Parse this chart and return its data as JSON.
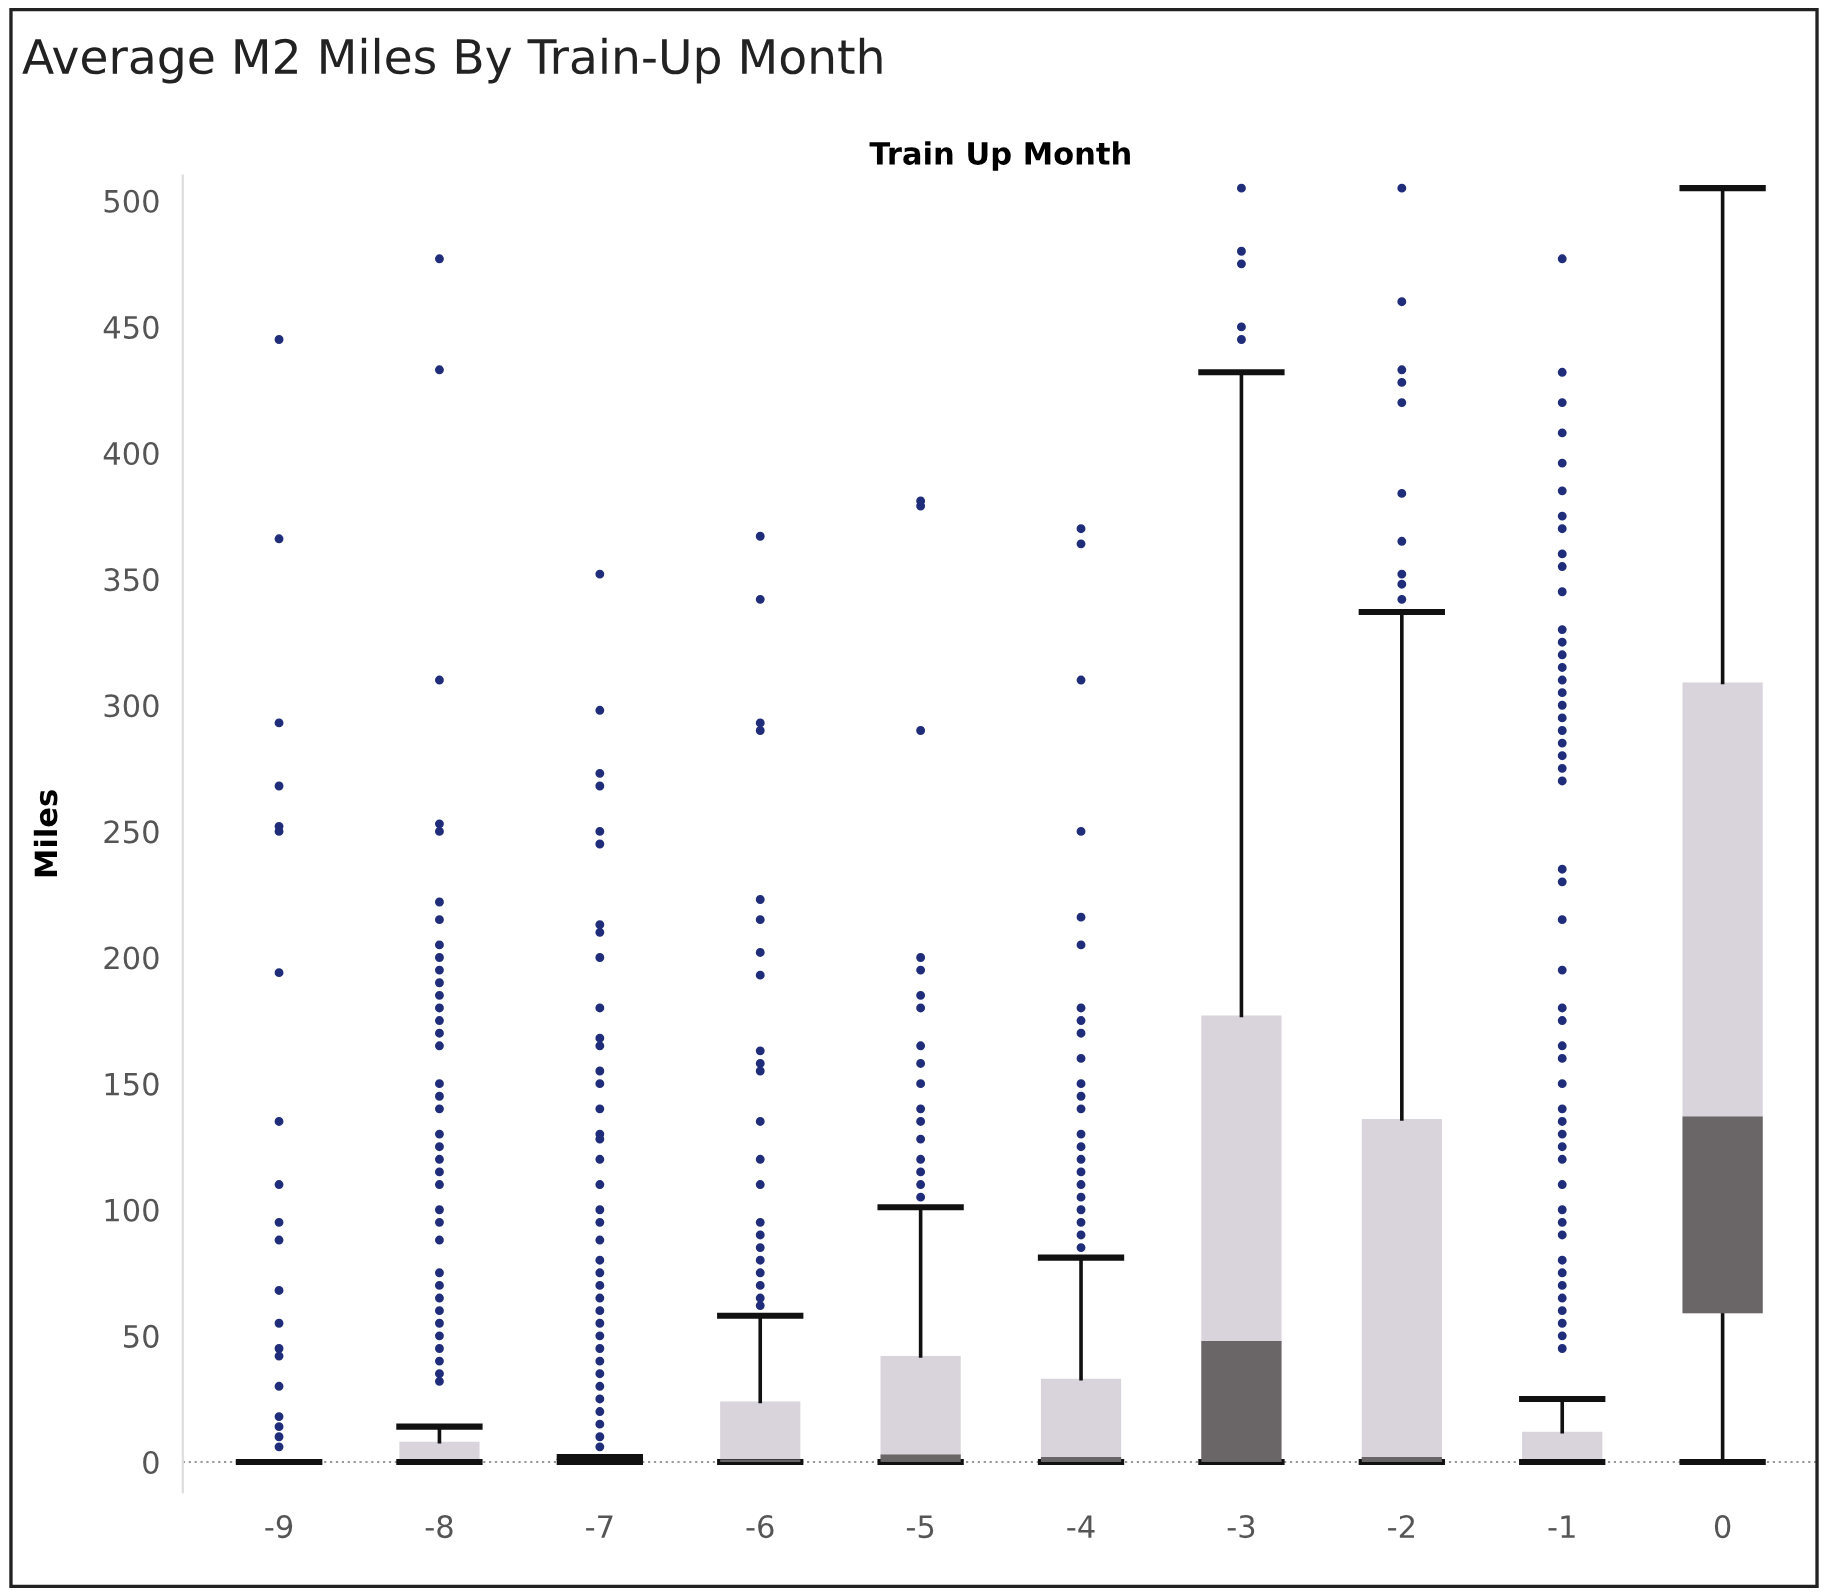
{
  "chart_data": {
    "type": "box",
    "title": "Average M2 Miles By Train-Up Month",
    "xlabel": "Train Up Month",
    "ylabel": "Miles",
    "categories": [
      "-9",
      "-8",
      "-7",
      "-6",
      "-5",
      "-4",
      "-3",
      "-2",
      "-1",
      "0"
    ],
    "colors": [
      "#111111",
      "#d9d3dc",
      "#d9d3dc",
      "#d9d3dc",
      "#d9d3dc",
      "#d9d3dc",
      "#d9d3dc",
      "#d9d3dc",
      "#d9d3dc",
      "#d9d3dc"
    ],
    "boxes": [
      {
        "low": 0,
        "q1": 0,
        "median": 0,
        "q3": 0,
        "high": 0,
        "outliers": [
          445,
          366,
          293,
          268,
          252,
          250,
          194,
          135,
          110,
          95,
          88,
          68,
          55,
          45,
          42,
          30,
          18,
          14,
          10,
          6
        ]
      },
      {
        "low": 0,
        "q1": 0,
        "median": 0,
        "q3": 8,
        "high": 14,
        "outliers": [
          477,
          433,
          310,
          253,
          250,
          222,
          215,
          205,
          200,
          195,
          190,
          185,
          180,
          175,
          170,
          165,
          150,
          145,
          140,
          130,
          125,
          120,
          115,
          110,
          100,
          95,
          88,
          75,
          70,
          65,
          60,
          55,
          50,
          45,
          40,
          35,
          32
        ]
      },
      {
        "low": 0,
        "q1": 0,
        "median": 0,
        "q3": 2,
        "high": 2,
        "outliers": [
          352,
          298,
          273,
          268,
          250,
          245,
          213,
          210,
          200,
          180,
          168,
          165,
          155,
          150,
          140,
          130,
          128,
          120,
          110,
          100,
          95,
          88,
          80,
          75,
          70,
          65,
          60,
          55,
          50,
          45,
          40,
          35,
          30,
          25,
          20,
          15,
          10,
          6
        ]
      },
      {
        "low": 0,
        "q1": 0,
        "median": 1,
        "q3": 24,
        "high": 58,
        "outliers": [
          367,
          342,
          293,
          290,
          223,
          215,
          202,
          193,
          163,
          158,
          155,
          135,
          120,
          110,
          95,
          90,
          85,
          80,
          75,
          70,
          65,
          62
        ]
      },
      {
        "low": 0,
        "q1": 0,
        "median": 3,
        "q3": 42,
        "high": 101,
        "outliers": [
          381,
          379,
          290,
          200,
          195,
          185,
          180,
          165,
          158,
          150,
          140,
          135,
          128,
          120,
          115,
          110,
          105
        ]
      },
      {
        "low": 0,
        "q1": 0,
        "median": 2,
        "q3": 33,
        "high": 81,
        "outliers": [
          370,
          364,
          310,
          250,
          216,
          205,
          180,
          175,
          170,
          160,
          150,
          145,
          140,
          130,
          125,
          120,
          115,
          110,
          105,
          100,
          95,
          90,
          85
        ]
      },
      {
        "low": 0,
        "q1": 0,
        "median": 48,
        "q3": 177,
        "high": 432,
        "outliers": [
          505,
          480,
          475,
          450,
          445
        ]
      },
      {
        "low": 0,
        "q1": 0,
        "median": 2,
        "q3": 136,
        "high": 337,
        "outliers": [
          505,
          460,
          433,
          428,
          420,
          384,
          365,
          352,
          348,
          342
        ]
      },
      {
        "low": 0,
        "q1": 0,
        "median": 0,
        "q3": 12,
        "high": 25,
        "outliers": [
          477,
          432,
          420,
          408,
          396,
          385,
          375,
          370,
          360,
          355,
          345,
          330,
          325,
          320,
          315,
          310,
          305,
          300,
          295,
          290,
          285,
          280,
          275,
          270,
          235,
          230,
          215,
          195,
          180,
          175,
          165,
          160,
          150,
          140,
          135,
          130,
          125,
          120,
          110,
          100,
          95,
          90,
          80,
          75,
          70,
          65,
          60,
          55,
          50,
          45
        ]
      },
      {
        "low": 0,
        "q1": 59,
        "median": 137,
        "q3": 309,
        "high": 505
      }
    ],
    "ylim": [
      -12,
      510
    ],
    "yticks": [
      0,
      50,
      100,
      150,
      200,
      250,
      300,
      350,
      400,
      450,
      500
    ],
    "ref_lines": [
      {
        "axis": "y",
        "value": 0,
        "color": "#999999",
        "line_style": "dotted"
      }
    ],
    "grid": false,
    "legend": false
  }
}
